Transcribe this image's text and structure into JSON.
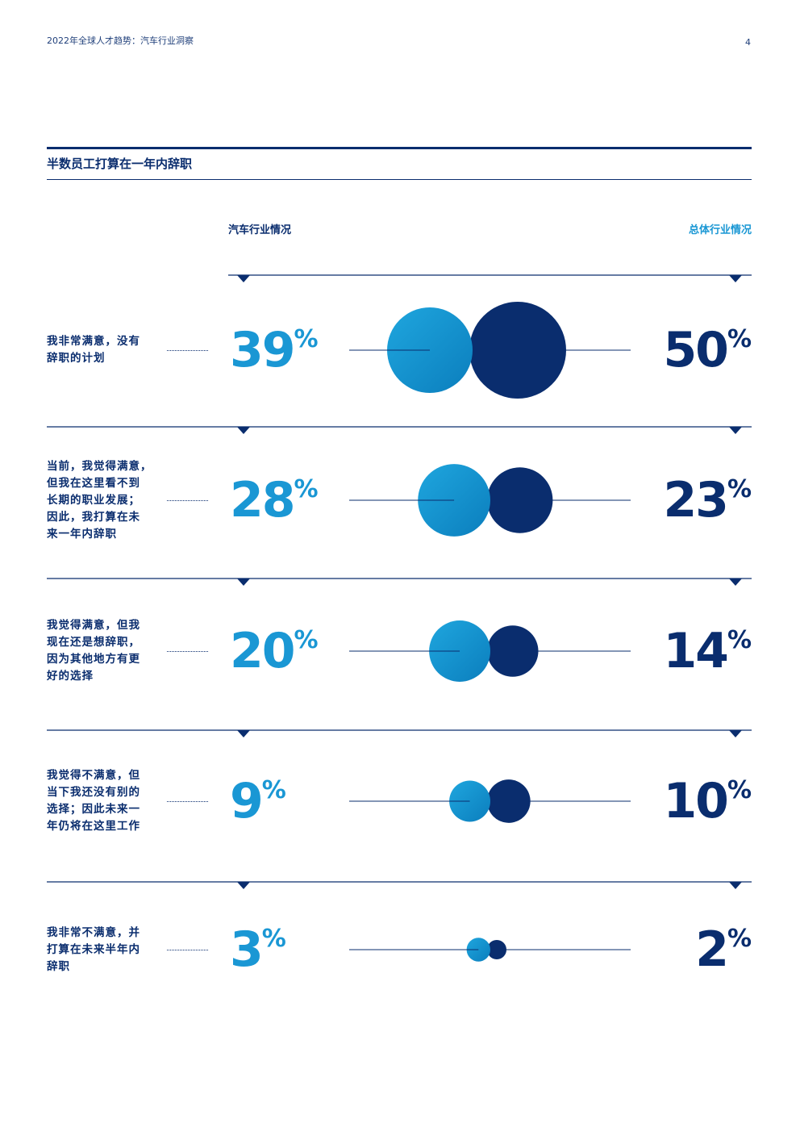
{
  "header": {
    "title": "2022年全球人才趋势：汽车行业洞察",
    "page_number": "4"
  },
  "section": {
    "title": "半数员工打算在一年内辞职"
  },
  "columns": {
    "left": "汽车行业情况",
    "right": "总体行业情况"
  },
  "colors": {
    "automotive": "#1a97d4",
    "overall": "#0a2d6e"
  },
  "chart_data": {
    "type": "bubble-comparison",
    "series": [
      {
        "name": "汽车行业情况",
        "values": [
          39,
          28,
          20,
          9,
          3
        ]
      },
      {
        "name": "总体行业情况",
        "values": [
          50,
          23,
          14,
          10,
          2
        ]
      }
    ],
    "categories": [
      "我非常满意，没有辞职的计划",
      "当前，我觉得满意，但我在这里看不到长期的职业发展；因此，我打算在未来一年内辞职",
      "我觉得满意，但我现在还是想辞职，因为其他地方有更好的选择",
      "我觉得不满意，但当下我还没有别的选择；因此未来一年仍将在这里工作",
      "我非常不满意，并打算在未来半年内辞职"
    ],
    "unit": "%"
  },
  "rows": [
    {
      "label_lines": [
        "我非常满意，没有",
        "辞职的计划"
      ],
      "auto": "39",
      "overall": "50",
      "symbol": "%"
    },
    {
      "label_lines": [
        "当前，我觉得满意，",
        "但我在这里看不到",
        "长期的职业发展；",
        "因此，我打算在未",
        "来一年内辞职"
      ],
      "auto": "28",
      "overall": "23",
      "symbol": "%"
    },
    {
      "label_lines": [
        "我觉得满意，但我",
        "现在还是想辞职，",
        "因为其他地方有更",
        "好的选择"
      ],
      "auto": "20",
      "overall": "14",
      "symbol": "%"
    },
    {
      "label_lines": [
        "我觉得不满意，但",
        "当下我还没有别的",
        "选择；因此未来一",
        "年仍将在这里工作"
      ],
      "auto": "9",
      "overall": "10",
      "symbol": "%"
    },
    {
      "label_lines": [
        "我非常不满意，并",
        "打算在未来半年内",
        "辞职"
      ],
      "auto": "3",
      "overall": "2",
      "symbol": "%"
    }
  ]
}
